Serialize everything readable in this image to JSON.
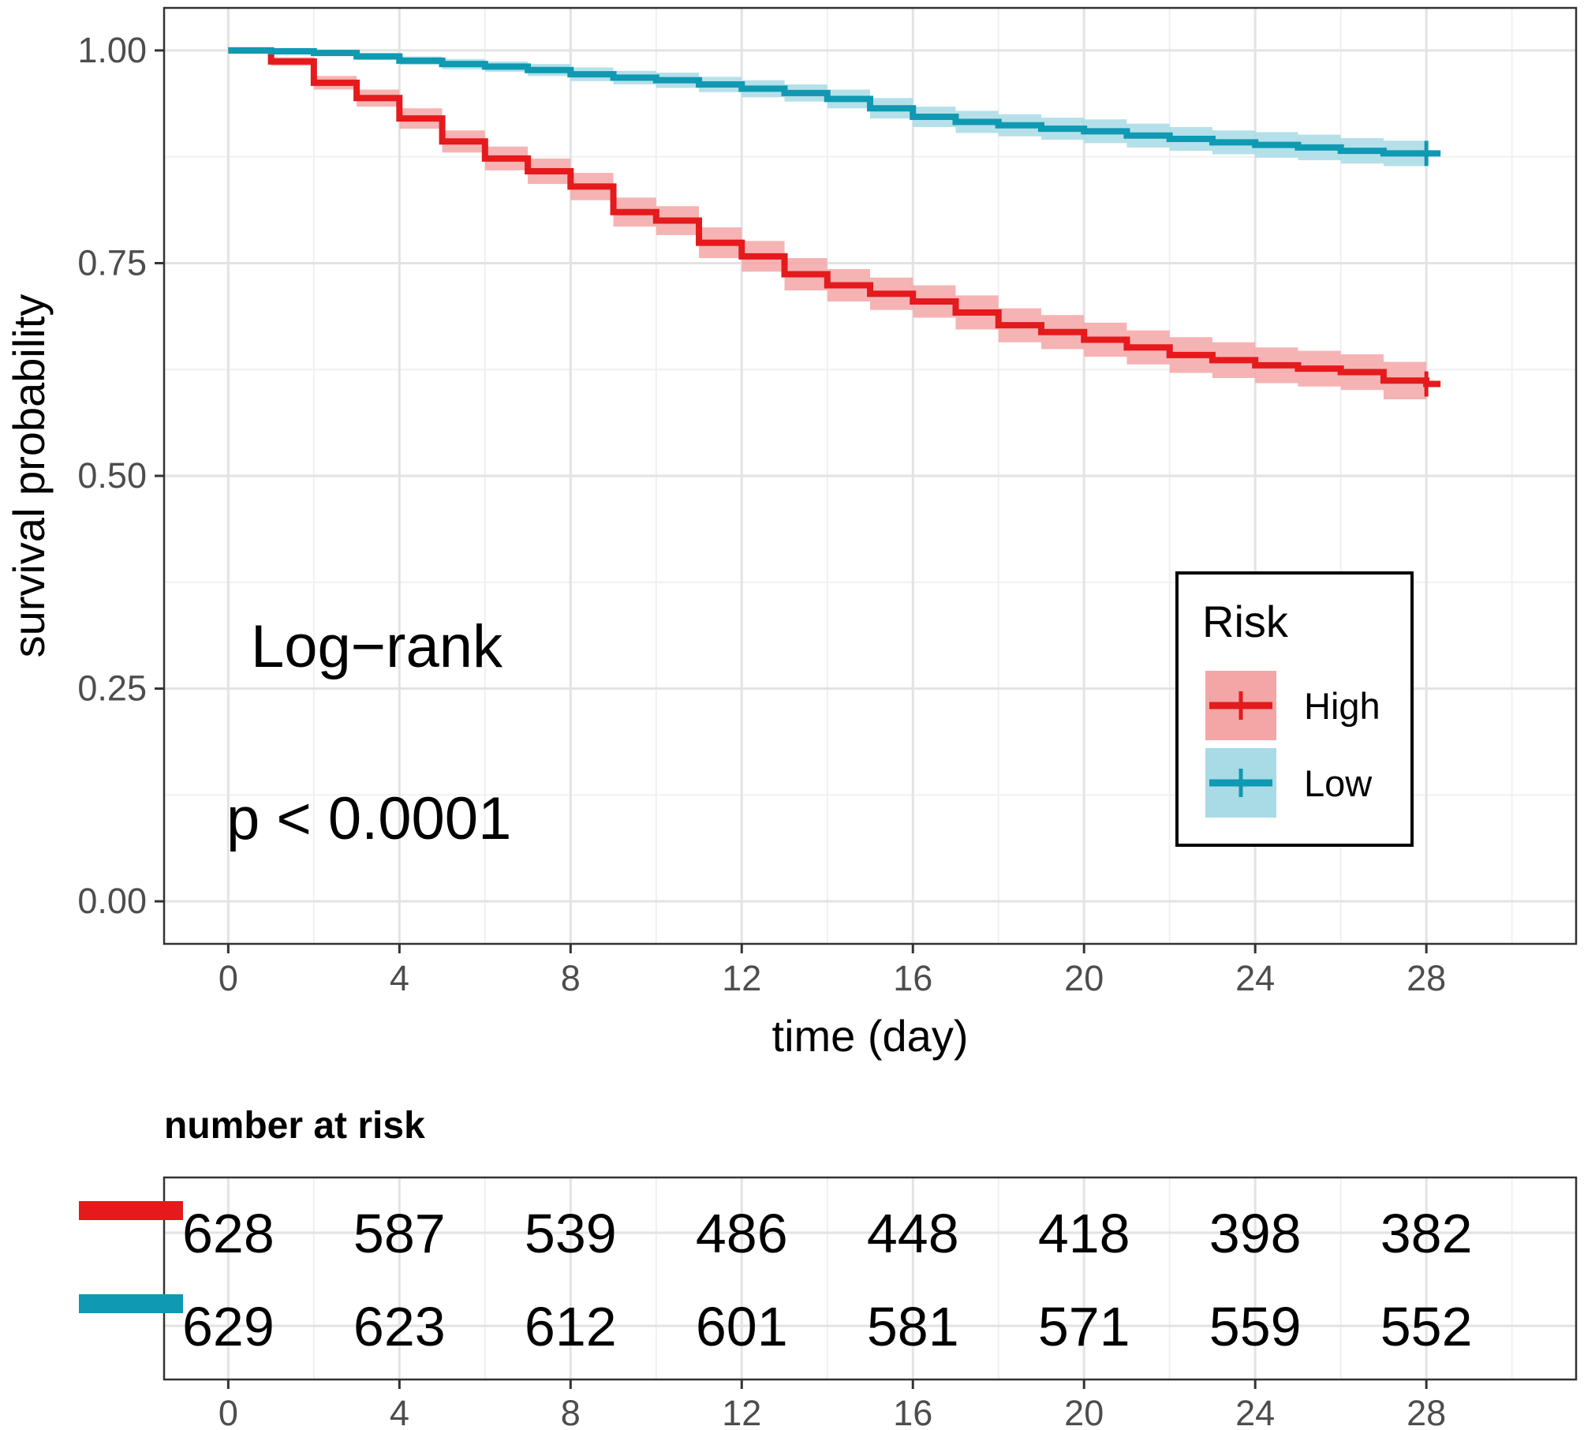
{
  "chart_data": {
    "type": "line",
    "subtype": "kaplan-meier",
    "xlabel": "time (day)",
    "ylabel": "survival probability",
    "xlim": [
      -1.5,
      31.5
    ],
    "ylim": [
      -0.05,
      1.05
    ],
    "x_ticks": [
      0,
      4,
      8,
      12,
      16,
      20,
      24,
      28
    ],
    "x_tick_labels": [
      "0",
      "4",
      "8",
      "12",
      "16",
      "20",
      "24",
      "28"
    ],
    "y_ticks": [
      0,
      0.25,
      0.5,
      0.75,
      1
    ],
    "y_tick_labels": [
      "0.00",
      "0.25",
      "0.50",
      "0.75",
      "1.00"
    ],
    "grid": true,
    "annotations": [
      "Log−rank",
      "p < 0.0001"
    ],
    "legend": {
      "title": "Risk",
      "position": "right"
    },
    "series": [
      {
        "name": "High",
        "color": "#e41a1c",
        "band_color": "#f4a6a7",
        "steps": [
          [
            0,
            1.0
          ],
          [
            1,
            0.987
          ],
          [
            2,
            0.962
          ],
          [
            3,
            0.944
          ],
          [
            4,
            0.92
          ],
          [
            5,
            0.893
          ],
          [
            6,
            0.873
          ],
          [
            7,
            0.858
          ],
          [
            8,
            0.84
          ],
          [
            9,
            0.81
          ],
          [
            10,
            0.8
          ],
          [
            11,
            0.774
          ],
          [
            12,
            0.758
          ],
          [
            13,
            0.737
          ],
          [
            14,
            0.724
          ],
          [
            15,
            0.714
          ],
          [
            16,
            0.705
          ],
          [
            17,
            0.692
          ],
          [
            18,
            0.677
          ],
          [
            19,
            0.669
          ],
          [
            20,
            0.66
          ],
          [
            21,
            0.651
          ],
          [
            22,
            0.642
          ],
          [
            23,
            0.636
          ],
          [
            24,
            0.63
          ],
          [
            25,
            0.626
          ],
          [
            26,
            0.622
          ],
          [
            27,
            0.612
          ],
          [
            28,
            0.608
          ]
        ],
        "ci_halfwidth": [
          0.0,
          0.005,
          0.008,
          0.01,
          0.012,
          0.013,
          0.014,
          0.015,
          0.016,
          0.017,
          0.017,
          0.018,
          0.018,
          0.019,
          0.019,
          0.019,
          0.019,
          0.02,
          0.02,
          0.02,
          0.02,
          0.02,
          0.021,
          0.021,
          0.021,
          0.021,
          0.021,
          0.022,
          0.022
        ],
        "censor_x": 28
      },
      {
        "name": "Low",
        "color": "#0f99b2",
        "band_color": "#a8dbe5",
        "steps": [
          [
            0,
            1.0
          ],
          [
            1,
            0.999
          ],
          [
            2,
            0.997
          ],
          [
            3,
            0.993
          ],
          [
            4,
            0.988
          ],
          [
            5,
            0.984
          ],
          [
            6,
            0.981
          ],
          [
            7,
            0.977
          ],
          [
            8,
            0.972
          ],
          [
            9,
            0.968
          ],
          [
            10,
            0.965
          ],
          [
            11,
            0.96
          ],
          [
            12,
            0.955
          ],
          [
            13,
            0.95
          ],
          [
            14,
            0.943
          ],
          [
            15,
            0.932
          ],
          [
            16,
            0.922
          ],
          [
            17,
            0.916
          ],
          [
            18,
            0.912
          ],
          [
            19,
            0.908
          ],
          [
            20,
            0.905
          ],
          [
            21,
            0.9
          ],
          [
            22,
            0.896
          ],
          [
            23,
            0.892
          ],
          [
            24,
            0.889
          ],
          [
            25,
            0.886
          ],
          [
            26,
            0.882
          ],
          [
            27,
            0.879
          ],
          [
            28,
            0.879
          ]
        ],
        "ci_halfwidth": [
          0.0,
          0.002,
          0.003,
          0.004,
          0.005,
          0.006,
          0.006,
          0.007,
          0.008,
          0.008,
          0.009,
          0.009,
          0.01,
          0.01,
          0.011,
          0.012,
          0.012,
          0.013,
          0.013,
          0.013,
          0.014,
          0.014,
          0.014,
          0.014,
          0.015,
          0.015,
          0.015,
          0.015,
          0.015
        ],
        "censor_x": 28
      }
    ],
    "risk_table": {
      "title": "number at risk",
      "times": [
        0,
        4,
        8,
        12,
        16,
        20,
        24,
        28
      ],
      "time_labels": [
        "0",
        "4",
        "8",
        "12",
        "16",
        "20",
        "24",
        "28"
      ],
      "rows": [
        {
          "name": "High",
          "color": "#e41a1c",
          "values": [
            "628",
            "587",
            "539",
            "486",
            "448",
            "418",
            "398",
            "382"
          ]
        },
        {
          "name": "Low",
          "color": "#0f99b2",
          "values": [
            "629",
            "623",
            "612",
            "601",
            "581",
            "571",
            "559",
            "552"
          ]
        }
      ]
    }
  }
}
